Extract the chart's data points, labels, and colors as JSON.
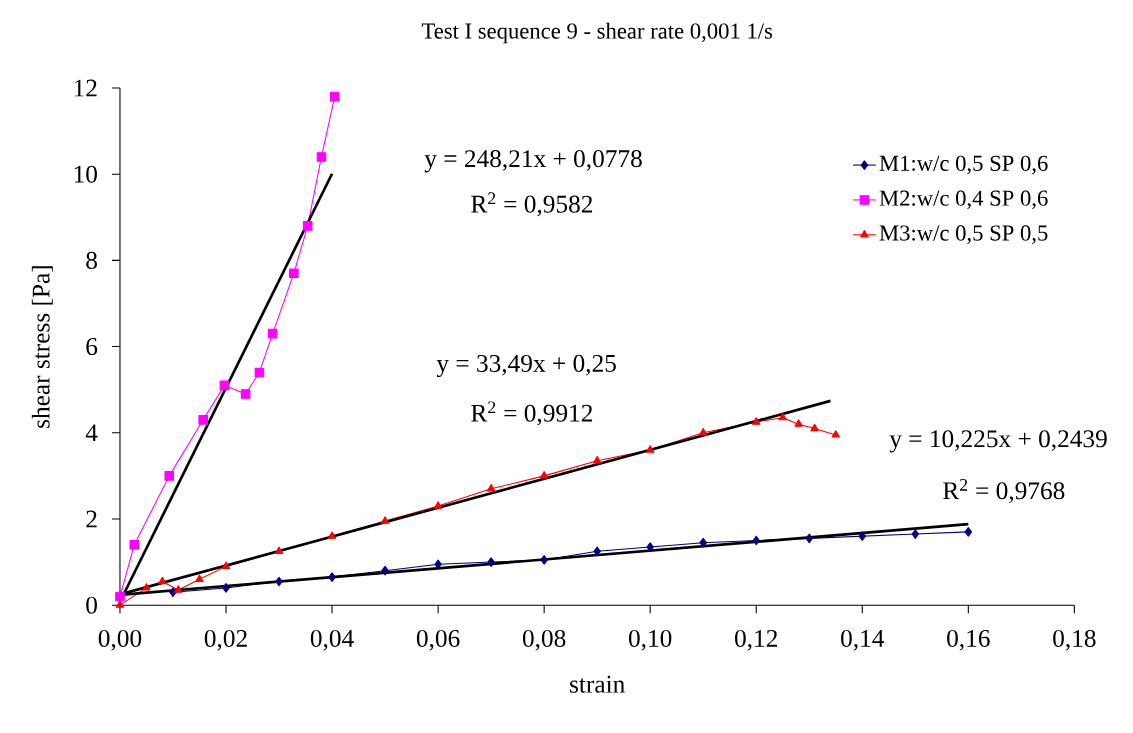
{
  "chart_data": {
    "type": "line",
    "title": "Test I sequence 9 - shear rate 0,001 1/s",
    "xlabel": "strain",
    "ylabel": "shear stress [Pa]",
    "series": [
      {
        "name": "M1:w/c 0,5 SP 0,6",
        "color": "#000080",
        "marker": "diamond",
        "x": [
          0.01,
          0.02,
          0.03,
          0.04,
          0.05,
          0.06,
          0.07,
          0.08,
          0.09,
          0.1,
          0.11,
          0.12,
          0.13,
          0.14,
          0.15,
          0.16
        ],
        "values": [
          0.3,
          0.4,
          0.55,
          0.65,
          0.8,
          0.95,
          1.0,
          1.05,
          1.25,
          1.35,
          1.45,
          1.5,
          1.55,
          1.6,
          1.65,
          1.7
        ]
      },
      {
        "name": "M2:w/c 0,4 SP 0,6",
        "color": "#ff00ff",
        "marker": "square",
        "x": [
          0,
          0.0027,
          0.0093,
          0.0157,
          0.0197,
          0.0237,
          0.0263,
          0.0288,
          0.0328,
          0.0354,
          0.038,
          0.0405
        ],
        "values": [
          0.2,
          1.4,
          3.0,
          4.3,
          5.1,
          4.9,
          5.4,
          6.3,
          7.7,
          8.8,
          10.4,
          11.8
        ]
      },
      {
        "name": "M3:w/c 0,5 SP 0,5",
        "color": "#ff0000",
        "marker": "triangle",
        "x": [
          0,
          0.005,
          0.008,
          0.011,
          0.015,
          0.02,
          0.03,
          0.04,
          0.05,
          0.06,
          0.07,
          0.08,
          0.09,
          0.1,
          0.11,
          0.12,
          0.125,
          0.128,
          0.131,
          0.135
        ],
        "values": [
          0,
          0.4,
          0.55,
          0.35,
          0.6,
          0.9,
          1.25,
          1.6,
          1.95,
          2.3,
          2.7,
          3.0,
          3.35,
          3.6,
          4.0,
          4.25,
          4.35,
          4.2,
          4.1,
          3.95
        ]
      },
      {
        "type": "line",
        "color": "#000000",
        "marker": "none",
        "x": [
          0,
          0.04
        ],
        "values": [
          0.08,
          10.01
        ]
      },
      {
        "type": "line",
        "color": "#000000",
        "marker": "none",
        "x": [
          0,
          0.134
        ],
        "values": [
          0.25,
          4.74
        ]
      },
      {
        "type": "line",
        "color": "#000000",
        "marker": "none",
        "x": [
          0,
          0.16
        ],
        "values": [
          0.24,
          1.88
        ]
      }
    ],
    "annotations": [
      "y = 248,21x + 0,0778",
      "R$^{2}$ = 0,9582",
      "y = 33,49x + 0,25",
      "R$^{2}$ = 0,9912",
      "y = 10,225x + 0,2439",
      "R$^{2}$ = 0,9768"
    ],
    "xlim": [
      0,
      0.18
    ],
    "ylim": [
      0,
      12
    ],
    "xticks": [
      {
        "value": 0,
        "label": "0,00"
      },
      {
        "value": 0.02,
        "label": "0,02"
      },
      {
        "value": 0.04,
        "label": "0,04"
      },
      {
        "value": 0.06,
        "label": "0,06"
      },
      {
        "value": 0.08,
        "label": "0,08"
      },
      {
        "value": 0.1,
        "label": "0,10"
      },
      {
        "value": 0.12,
        "label": "0,12"
      },
      {
        "value": 0.14,
        "label": "0,14"
      },
      {
        "value": 0.16,
        "label": "0,16"
      },
      {
        "value": 0.18,
        "label": "0,18"
      }
    ],
    "yticks": [
      0,
      2,
      4,
      6,
      8,
      10,
      12
    ],
    "legend": "top right",
    "grid": false,
    "line_style": "solid"
  }
}
